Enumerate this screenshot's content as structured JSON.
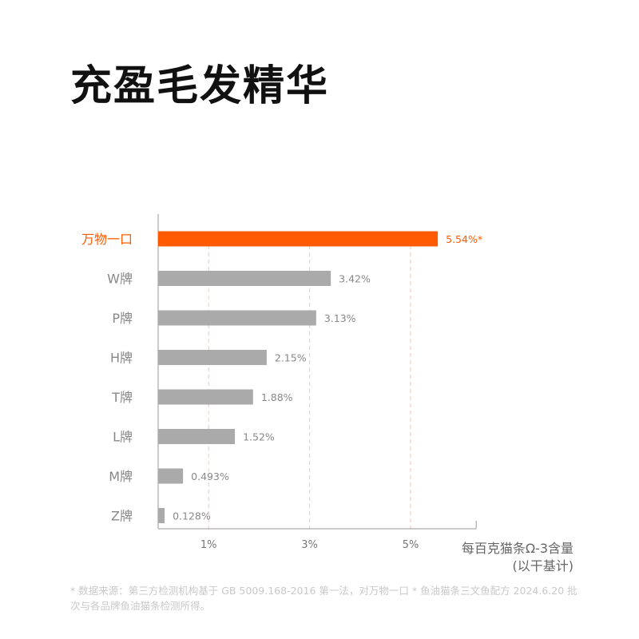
{
  "title": "充盈毛发精华",
  "colors": {
    "highlight": "#ff5a00",
    "bar": "#aaaaaa",
    "grid": "#f5c6b3",
    "axis": "#999999",
    "label": "#888888"
  },
  "chart_data": {
    "type": "bar",
    "orientation": "horizontal",
    "categories": [
      "万物一口",
      "W牌",
      "P牌",
      "H牌",
      "T牌",
      "L牌",
      "M牌",
      "Z牌"
    ],
    "values": [
      5.54,
      3.42,
      3.13,
      2.15,
      1.88,
      1.52,
      0.493,
      0.128
    ],
    "value_labels": [
      "5.54%*",
      "3.42%",
      "3.13%",
      "2.15%",
      "1.88%",
      "1.52%",
      "0.493%",
      "0.128%"
    ],
    "highlight_index": 0,
    "x_ticks": [
      1,
      3,
      5
    ],
    "x_tick_labels": [
      "1%",
      "3%",
      "5%"
    ],
    "xlim": [
      0,
      6.3
    ],
    "xlabel_line1": "每百克猫条Ω-3含量",
    "xlabel_line2": "(以干基计)",
    "grid": "dashed vertical at ticks"
  },
  "footnote": "* 数据来源：第三方检测机构基于 GB 5009.168-2016 第一法，对万物一口 * 鱼油猫条三文鱼配方 2024.6.20 批次与各品牌鱼油猫条检测所得。"
}
